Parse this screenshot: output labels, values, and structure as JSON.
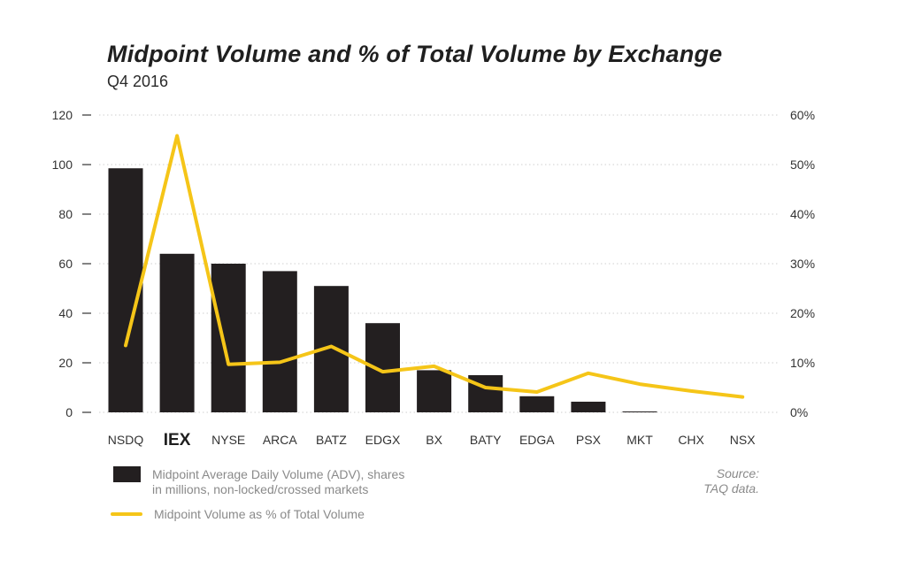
{
  "chart_data": {
    "type": "bar",
    "title": "Midpoint Volume and % of Total Volume by Exchange",
    "subtitle": "Q4 2016",
    "categories": [
      "NSDQ",
      "IEX",
      "NYSE",
      "ARCA",
      "BATZ",
      "EDGX",
      "BX",
      "BATY",
      "EDGA",
      "PSX",
      "MKT",
      "CHX",
      "NSX"
    ],
    "highlight_category": "IEX",
    "series": [
      {
        "name": "Midpoint Average Daily Volume (ADV), shares in millions, non-locked/crossed markets",
        "type": "bar",
        "axis": "left",
        "color": "#231f20",
        "values": [
          98.5,
          64,
          60,
          57,
          51,
          36,
          17,
          15,
          6.5,
          4.3,
          0.3,
          0,
          0
        ]
      },
      {
        "name": "Midpoint Volume as % of Total Volume",
        "type": "line",
        "axis": "right",
        "color": "#f5c518",
        "values": [
          13.5,
          55.8,
          9.7,
          10.1,
          13.3,
          8.2,
          9.3,
          5.0,
          4.1,
          7.9,
          5.7,
          4.3,
          3.1
        ]
      }
    ],
    "y_left": {
      "range": [
        0,
        120
      ],
      "ticks": [
        "0",
        "20",
        "40",
        "60",
        "80",
        "100",
        "120"
      ]
    },
    "y_right": {
      "range": [
        0,
        60
      ],
      "ticks": [
        "0%",
        "10%",
        "20%",
        "30%",
        "40%",
        "50%",
        "60%"
      ]
    },
    "grid": true,
    "legend": {
      "placement": "bottom-left",
      "bar_label_line1": "Midpoint Average Daily Volume (ADV), shares",
      "bar_label_line2": "in millions, non-locked/crossed markets",
      "line_label": "Midpoint Volume as % of Total Volume"
    },
    "source_line1": "Source:",
    "source_line2": "TAQ data."
  }
}
